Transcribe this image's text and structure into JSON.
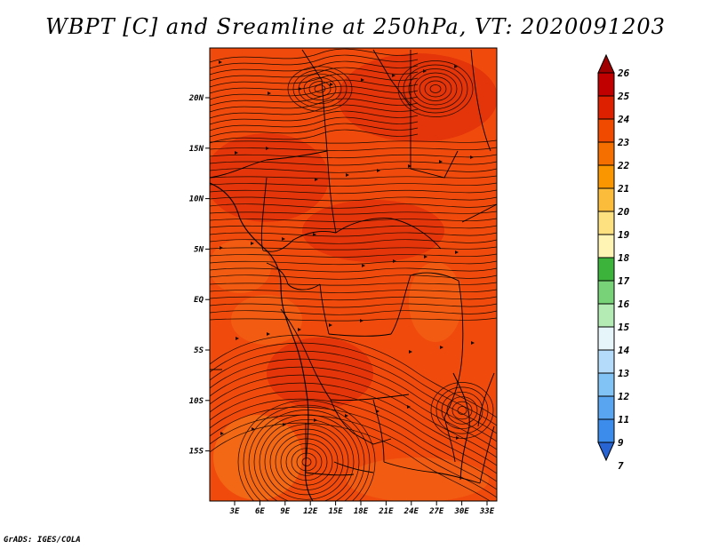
{
  "title": "WBPT [C] and Sreamline at 250hPa, VT: 2020091203",
  "credit": "GrADS: IGES/COLA",
  "map": {
    "lon_ticks": [
      "3E",
      "6E",
      "9E",
      "12E",
      "15E",
      "18E",
      "21E",
      "24E",
      "27E",
      "30E",
      "33E"
    ],
    "lat_ticks": [
      "20N",
      "15N",
      "10N",
      "5N",
      "EQ",
      "5S",
      "10S",
      "15S"
    ],
    "field_colors": {
      "base": "#f04a0c",
      "high": "#e0300a",
      "low": "#f46a16"
    }
  },
  "colorbar": {
    "labels": [
      "26",
      "25",
      "24",
      "23",
      "22",
      "21",
      "20",
      "19",
      "18",
      "17",
      "16",
      "15",
      "14",
      "13",
      "12",
      "11",
      "9",
      "7"
    ],
    "colors": [
      "#a00000",
      "#c00000",
      "#dc2000",
      "#f04a00",
      "#f56e00",
      "#fa9600",
      "#fbbc3c",
      "#fde080",
      "#fff4b4",
      "#3cb43c",
      "#78d278",
      "#b4ebb4",
      "#e6f5fa",
      "#b4dcfa",
      "#82c3f5",
      "#5aa5f0",
      "#3c8ceb",
      "#2864d2"
    ]
  }
}
